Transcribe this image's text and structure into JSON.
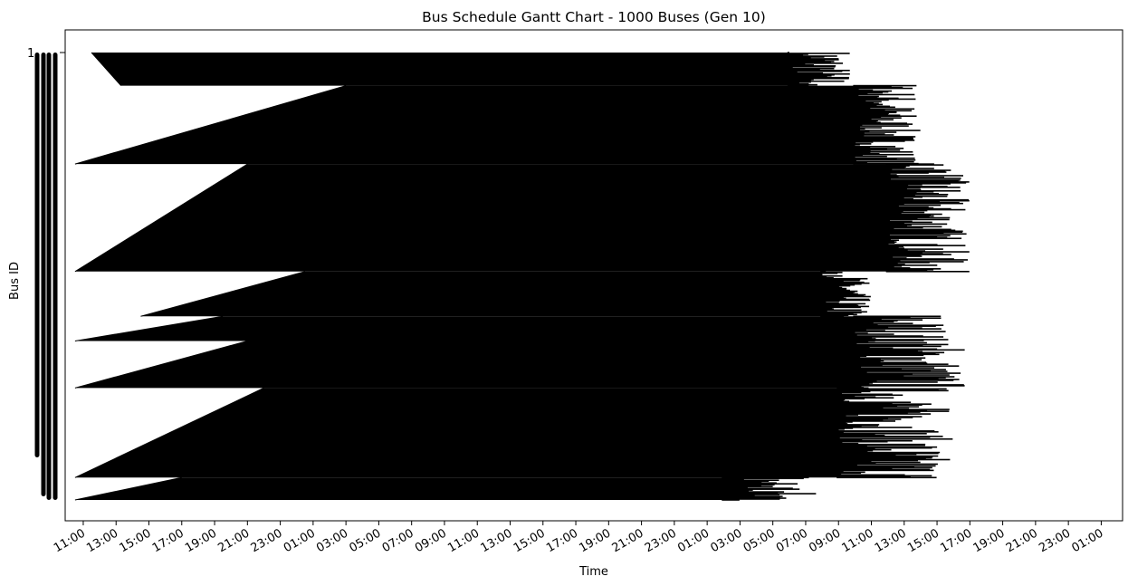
{
  "chart_data": {
    "type": "gantt",
    "title": "Bus Schedule Gantt Chart - 1000 Buses (Gen 10)",
    "xlabel": "Time",
    "ylabel": "Bus ID",
    "y_tick_labels": [
      "1"
    ],
    "x_tick_labels": [
      "11:00",
      "13:00",
      "15:00",
      "17:00",
      "19:00",
      "21:00",
      "23:00",
      "01:00",
      "03:00",
      "05:00",
      "07:00",
      "09:00",
      "11:00",
      "13:00",
      "15:00",
      "17:00",
      "19:00",
      "21:00",
      "23:00",
      "01:00",
      "03:00",
      "05:00",
      "07:00",
      "09:00",
      "11:00",
      "13:00",
      "15:00",
      "17:00",
      "19:00",
      "21:00",
      "23:00",
      "01:00"
    ],
    "x_range_hours": [
      9.9,
      74.3
    ],
    "y_range_bus": [
      0,
      1000
    ],
    "grid": false,
    "bar_color": "#000000",
    "blocks": [
      {
        "bus_start": 1,
        "bus_end": 75,
        "start_h": [
          11.5,
          13.3,
          13.3
        ],
        "end_h": [
          54.0,
          58.0
        ]
      },
      {
        "bus_start": 75,
        "bus_end": 250,
        "start_h": [
          27.0,
          10.5,
          10.5
        ],
        "end_h": [
          58.0,
          62.0
        ]
      },
      {
        "bus_start": 250,
        "bus_end": 490,
        "start_h": [
          21.0,
          10.5,
          10.5
        ],
        "end_h": [
          60.0,
          65.0
        ]
      },
      {
        "bus_start": 490,
        "bus_end": 590,
        "start_h": [
          24.5,
          14.5,
          14.5
        ],
        "end_h": [
          56.0,
          59.0
        ]
      },
      {
        "bus_start": 590,
        "bus_end": 645,
        "start_h": [
          19.5,
          10.5,
          10.5
        ],
        "end_h": [
          58.0,
          64.0
        ]
      },
      {
        "bus_start": 645,
        "bus_end": 750,
        "start_h": [
          21.0,
          10.5,
          10.5
        ],
        "end_h": [
          58.0,
          65.0
        ]
      },
      {
        "bus_start": 750,
        "bus_end": 950,
        "start_h": [
          22.0,
          10.5,
          10.5
        ],
        "end_h": [
          57.0,
          64.0
        ]
      },
      {
        "bus_start": 950,
        "bus_end": 1000,
        "start_h": [
          17.0,
          10.5,
          10.5
        ],
        "end_h": [
          50.0,
          56.0
        ]
      }
    ]
  }
}
